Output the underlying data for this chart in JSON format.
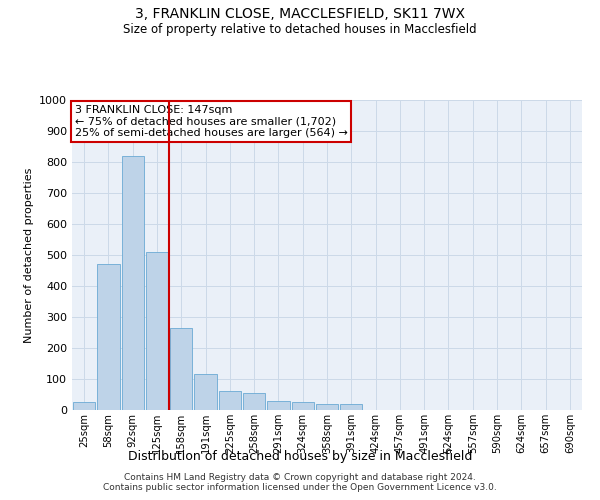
{
  "title": "3, FRANKLIN CLOSE, MACCLESFIELD, SK11 7WX",
  "subtitle": "Size of property relative to detached houses in Macclesfield",
  "xlabel": "Distribution of detached houses by size in Macclesfield",
  "ylabel": "Number of detached properties",
  "footer_line1": "Contains HM Land Registry data © Crown copyright and database right 2024.",
  "footer_line2": "Contains public sector information licensed under the Open Government Licence v3.0.",
  "bar_labels": [
    "25sqm",
    "58sqm",
    "92sqm",
    "125sqm",
    "158sqm",
    "191sqm",
    "225sqm",
    "258sqm",
    "291sqm",
    "324sqm",
    "358sqm",
    "391sqm",
    "424sqm",
    "457sqm",
    "491sqm",
    "524sqm",
    "557sqm",
    "590sqm",
    "624sqm",
    "657sqm",
    "690sqm"
  ],
  "bar_values": [
    25,
    470,
    820,
    510,
    265,
    115,
    60,
    55,
    30,
    25,
    20,
    18,
    0,
    0,
    0,
    0,
    0,
    0,
    0,
    0,
    0
  ],
  "bar_color": "#bed3e8",
  "bar_edge_color": "#6aaad4",
  "grid_color": "#ccd9e8",
  "background_color": "#eaf0f8",
  "vline_x_index": 3,
  "vline_color": "#cc0000",
  "annotation_text": "3 FRANKLIN CLOSE: 147sqm\n← 75% of detached houses are smaller (1,702)\n25% of semi-detached houses are larger (564) →",
  "annotation_box_color": "#ffffff",
  "annotation_box_edge": "#cc0000",
  "ylim": [
    0,
    1000
  ],
  "yticks": [
    0,
    100,
    200,
    300,
    400,
    500,
    600,
    700,
    800,
    900,
    1000
  ]
}
